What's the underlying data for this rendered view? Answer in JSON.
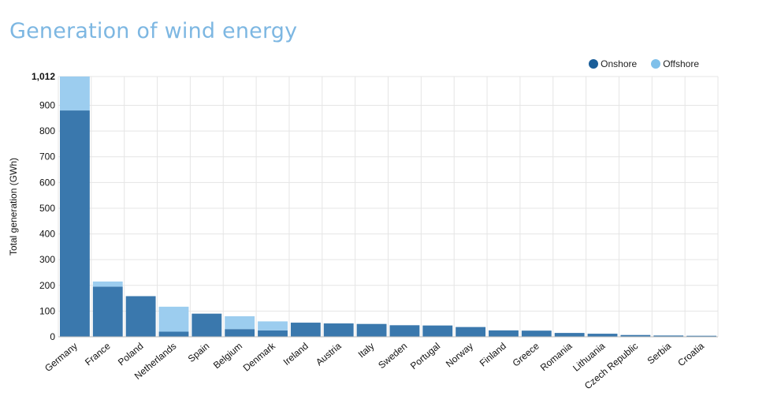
{
  "title": "Generation of wind energy",
  "colors": {
    "onshore": "#3a78ad",
    "offshore": "#9ccdef",
    "onshore_dot": "#1a5e99",
    "offshore_dot": "#7fc0ea",
    "grid": "#e5e5e5"
  },
  "legend": [
    {
      "name": "Onshore",
      "color": "#1a5e99"
    },
    {
      "name": "Offshore",
      "color": "#7fc0ea"
    }
  ],
  "chart_data": {
    "type": "bar",
    "stacked": true,
    "ylabel": "Total generation (GWh)",
    "ylim": [
      0,
      1012
    ],
    "yticks": [
      "0",
      "100",
      "200",
      "300",
      "400",
      "500",
      "600",
      "700",
      "800",
      "900",
      "1,012"
    ],
    "ytick_values": [
      0,
      100,
      200,
      300,
      400,
      500,
      600,
      700,
      800,
      900,
      1012
    ],
    "grid": true,
    "legend_position": "top-right",
    "categories": [
      "Germany",
      "France",
      "Poland",
      "Netherlands",
      "Spain",
      "Belgium",
      "Denmark",
      "Ireland",
      "Austria",
      "Italy",
      "Sweden",
      "Portugal",
      "Norway",
      "Finland",
      "Greece",
      "Romania",
      "Lithuania",
      "Czech Republic",
      "Serbia",
      "Croatia"
    ],
    "series": [
      {
        "name": "Onshore",
        "values": [
          880,
          195,
          158,
          20,
          90,
          30,
          25,
          55,
          52,
          50,
          45,
          44,
          38,
          25,
          24,
          15,
          12,
          7,
          5,
          4
        ]
      },
      {
        "name": "Offshore",
        "values": [
          132,
          20,
          0,
          97,
          0,
          50,
          35,
          0,
          0,
          0,
          0,
          0,
          0,
          0,
          0,
          0,
          0,
          0,
          0,
          0
        ]
      }
    ]
  }
}
